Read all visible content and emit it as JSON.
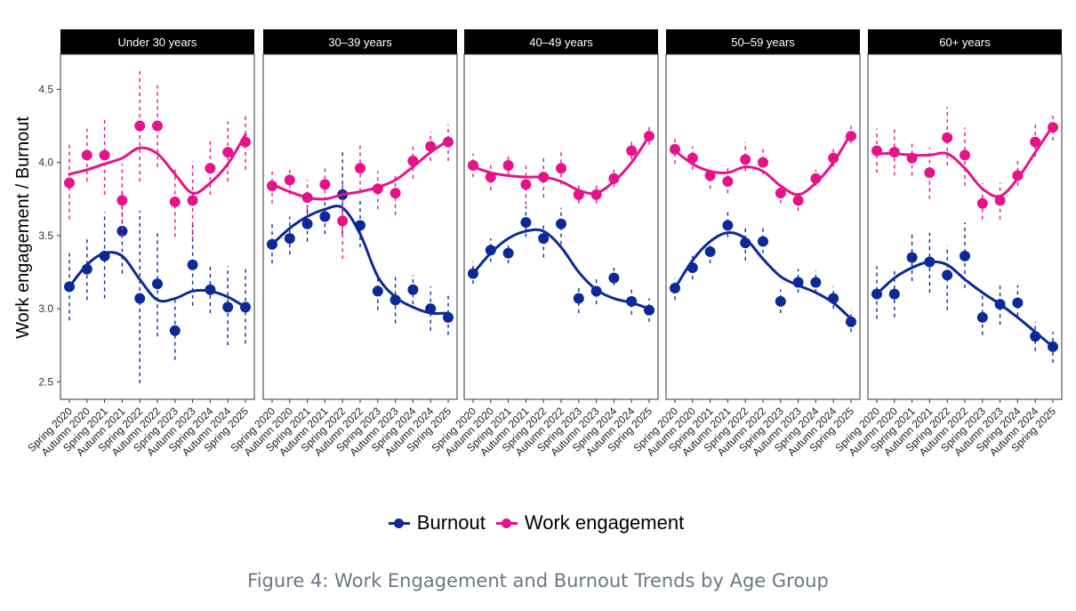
{
  "caption": "Figure 4: Work Engagement and Burnout Trends by Age Group",
  "chart_data": {
    "type": "line",
    "subtype": "faceted scatter with error bars and smoothed trend lines",
    "title": "",
    "ylabel": "Work engagement / Burnout",
    "xlabel": "",
    "ylim": [
      2.38,
      4.74
    ],
    "yticks": [
      2.5,
      3.0,
      3.5,
      4.0,
      4.5
    ],
    "ytick_labels": [
      "2.5",
      "3.0",
      "3.5",
      "4.0",
      "4.5"
    ],
    "grid": false,
    "legend_position": "bottom",
    "categories": [
      "Spring 2020",
      "Autumn 2020",
      "Spring 2021",
      "Autumn 2021",
      "Spring 2022",
      "Autumn 2022",
      "Spring 2023",
      "Autumn 2023",
      "Spring 2024",
      "Autumn 2024",
      "Spring 2025"
    ],
    "series_meta": [
      {
        "name": "Burnout",
        "color": "#0b2a97"
      },
      {
        "name": "Work engagement",
        "color": "#e6128a"
      }
    ],
    "facets": [
      {
        "label": "Under 30 years",
        "series": [
          {
            "name": "Burnout",
            "values": [
              3.15,
              3.27,
              3.36,
              3.53,
              3.07,
              3.17,
              2.85,
              3.3,
              3.13,
              3.01,
              3.01
            ],
            "lower": [
              2.92,
              3.06,
              3.07,
              3.24,
              2.49,
              2.81,
              2.65,
              3.02,
              2.97,
              2.75,
              2.76
            ],
            "upper": [
              3.38,
              3.48,
              3.66,
              3.82,
              3.67,
              3.54,
              3.06,
              3.59,
              3.3,
              3.29,
              3.27
            ],
            "trend": [
              3.15,
              3.3,
              3.38,
              3.36,
              3.2,
              3.06,
              3.07,
              3.12,
              3.12,
              3.08,
              3.01
            ]
          },
          {
            "name": "Work engagement",
            "values": [
              3.86,
              4.05,
              4.05,
              3.74,
              4.25,
              4.25,
              3.73,
              3.74,
              3.96,
              4.07,
              4.14
            ],
            "lower": [
              3.61,
              3.87,
              3.78,
              3.49,
              3.87,
              3.97,
              3.49,
              3.47,
              3.78,
              3.87,
              3.95
            ],
            "upper": [
              4.13,
              4.23,
              4.31,
              3.99,
              4.65,
              4.55,
              3.96,
              4.01,
              4.16,
              4.28,
              4.33
            ],
            "trend": [
              3.92,
              3.95,
              3.99,
              4.03,
              4.1,
              4.06,
              3.92,
              3.79,
              3.86,
              3.99,
              4.19
            ]
          }
        ]
      },
      {
        "label": "30–39 years",
        "series": [
          {
            "name": "Burnout",
            "values": [
              3.44,
              3.48,
              3.58,
              3.63,
              3.78,
              3.57,
              3.12,
              3.06,
              3.13,
              3.0,
              2.94
            ],
            "lower": [
              3.31,
              3.37,
              3.46,
              3.51,
              3.51,
              3.42,
              2.99,
              2.9,
              3.03,
              2.85,
              2.82
            ],
            "upper": [
              3.58,
              3.63,
              3.71,
              3.75,
              4.07,
              3.74,
              3.24,
              3.22,
              3.23,
              3.15,
              3.09
            ],
            "trend": [
              3.44,
              3.55,
              3.63,
              3.68,
              3.69,
              3.51,
              3.22,
              3.08,
              3.01,
              2.97,
              2.97
            ]
          },
          {
            "name": "Work engagement",
            "values": [
              3.84,
              3.88,
              3.76,
              3.85,
              3.6,
              3.96,
              3.82,
              3.79,
              4.01,
              4.11,
              4.14
            ],
            "lower": [
              3.72,
              3.78,
              3.63,
              3.74,
              3.34,
              3.8,
              3.68,
              3.64,
              3.89,
              4.01,
              4.01
            ],
            "upper": [
              3.96,
              3.97,
              3.88,
              3.97,
              3.85,
              4.12,
              3.94,
              3.93,
              4.12,
              4.21,
              4.26
            ],
            "trend": [
              3.85,
              3.8,
              3.76,
              3.75,
              3.78,
              3.8,
              3.83,
              3.88,
              3.97,
              4.07,
              4.15
            ]
          }
        ]
      },
      {
        "label": "40–49 years",
        "series": [
          {
            "name": "Burnout",
            "values": [
              3.24,
              3.4,
              3.38,
              3.59,
              3.48,
              3.58,
              3.07,
              3.12,
              3.21,
              3.05,
              2.99
            ],
            "lower": [
              3.17,
              3.32,
              3.31,
              3.49,
              3.35,
              3.44,
              2.97,
              3.03,
              3.16,
              2.96,
              2.91
            ],
            "upper": [
              3.32,
              3.48,
              3.45,
              3.7,
              3.59,
              3.69,
              3.15,
              3.2,
              3.28,
              3.13,
              3.07
            ],
            "trend": [
              3.24,
              3.38,
              3.48,
              3.53,
              3.53,
              3.42,
              3.25,
              3.13,
              3.07,
              3.04,
              3.0
            ]
          },
          {
            "name": "Work engagement",
            "values": [
              3.98,
              3.9,
              3.98,
              3.85,
              3.9,
              3.96,
              3.78,
              3.78,
              3.89,
              4.08,
              4.18
            ],
            "lower": [
              3.9,
              3.81,
              3.92,
              3.71,
              3.76,
              3.85,
              3.72,
              3.72,
              3.83,
              4.02,
              4.12
            ],
            "upper": [
              4.06,
              3.98,
              4.05,
              3.98,
              4.03,
              4.07,
              3.86,
              3.86,
              3.96,
              4.15,
              4.26
            ],
            "trend": [
              3.97,
              3.93,
              3.91,
              3.9,
              3.9,
              3.87,
              3.81,
              3.79,
              3.87,
              4.0,
              4.18
            ]
          }
        ]
      },
      {
        "label": "50–59 years",
        "series": [
          {
            "name": "Burnout",
            "values": [
              3.14,
              3.28,
              3.39,
              3.57,
              3.45,
              3.46,
              3.05,
              3.18,
              3.18,
              3.07,
              2.91
            ],
            "lower": [
              3.06,
              3.2,
              3.31,
              3.49,
              3.33,
              3.38,
              2.97,
              3.11,
              3.11,
              3.0,
              2.84
            ],
            "upper": [
              3.21,
              3.36,
              3.46,
              3.66,
              3.55,
              3.56,
              3.13,
              3.27,
              3.26,
              3.15,
              2.99
            ],
            "trend": [
              3.14,
              3.33,
              3.46,
              3.52,
              3.48,
              3.34,
              3.22,
              3.16,
              3.11,
              3.04,
              2.93
            ]
          },
          {
            "name": "Work engagement",
            "values": [
              4.09,
              4.03,
              3.91,
              3.87,
              4.02,
              4.0,
              3.79,
              3.74,
              3.89,
              4.03,
              4.18
            ],
            "lower": [
              3.99,
              3.95,
              3.82,
              3.79,
              3.94,
              3.92,
              3.72,
              3.67,
              3.84,
              3.97,
              4.13
            ],
            "upper": [
              4.17,
              4.11,
              3.97,
              3.96,
              4.14,
              4.11,
              3.84,
              3.82,
              3.95,
              4.1,
              4.25
            ],
            "trend": [
              4.08,
              3.99,
              3.94,
              3.93,
              3.97,
              3.94,
              3.84,
              3.78,
              3.86,
              4.0,
              4.2
            ]
          }
        ]
      },
      {
        "label": "60+ years",
        "series": [
          {
            "name": "Burnout",
            "values": [
              3.1,
              3.1,
              3.35,
              3.32,
              3.23,
              3.36,
              2.94,
              3.03,
              3.04,
              2.81,
              2.74
            ],
            "lower": [
              2.93,
              2.94,
              3.19,
              3.11,
              2.99,
              3.14,
              2.82,
              2.89,
              2.95,
              2.71,
              2.63
            ],
            "upper": [
              3.29,
              3.27,
              3.51,
              3.52,
              3.43,
              3.59,
              3.09,
              3.18,
              3.16,
              2.91,
              2.84
            ],
            "trend": [
              3.1,
              3.21,
              3.28,
              3.32,
              3.3,
              3.2,
              3.11,
              3.03,
              2.94,
              2.84,
              2.74
            ]
          },
          {
            "name": "Work engagement",
            "values": [
              4.08,
              4.07,
              4.03,
              3.93,
              4.17,
              4.05,
              3.72,
              3.74,
              3.91,
              4.14,
              4.24
            ],
            "lower": [
              3.93,
              3.91,
              3.91,
              3.75,
              3.98,
              3.84,
              3.61,
              3.61,
              3.84,
              4.04,
              4.15
            ],
            "upper": [
              4.23,
              4.23,
              4.15,
              4.1,
              4.38,
              4.24,
              3.86,
              3.86,
              4.01,
              4.26,
              4.34
            ],
            "trend": [
              4.06,
              4.06,
              4.05,
              4.05,
              4.06,
              3.96,
              3.82,
              3.77,
              3.89,
              4.07,
              4.25
            ]
          }
        ]
      }
    ]
  },
  "legend": {
    "items": [
      {
        "label": "Burnout",
        "color": "#0b2a97"
      },
      {
        "label": "Work engagement",
        "color": "#e6128a"
      }
    ]
  }
}
